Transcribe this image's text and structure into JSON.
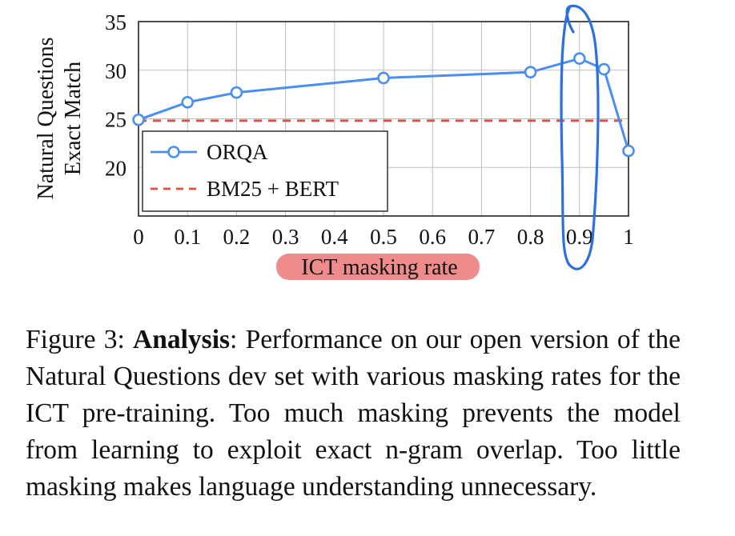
{
  "chart_data": {
    "type": "line",
    "xlabel": "ICT masking rate",
    "ylabel_lines": [
      "Natural Questions",
      "Exact Match"
    ],
    "xlim": [
      0,
      1
    ],
    "ylim": [
      15,
      35
    ],
    "x_ticks": [
      0,
      0.1,
      0.2,
      0.3,
      0.4,
      0.5,
      0.6,
      0.7,
      0.8,
      0.9,
      1
    ],
    "x_tick_labels": [
      "0",
      "0.1",
      "0.2",
      "0.3",
      "0.4",
      "0.5",
      "0.6",
      "0.7",
      "0.8",
      "0.9",
      "1"
    ],
    "y_ticks": [
      20,
      25,
      30,
      35
    ],
    "y_tick_labels": [
      "20",
      "25",
      "30",
      "35"
    ],
    "grid": true,
    "legend_position": "lower-left",
    "series": [
      {
        "name": "ORQA",
        "style": "solid line with hollow circle markers",
        "color": "#4a8ff0",
        "x": [
          0,
          0.1,
          0.2,
          0.5,
          0.8,
          0.9,
          0.95,
          1
        ],
        "y": [
          24.9,
          26.7,
          27.7,
          29.2,
          29.8,
          31.2,
          30.1,
          21.7
        ]
      },
      {
        "name": "BM25 + BERT",
        "style": "dashed horizontal line",
        "color": "#e0503c",
        "x": [
          0,
          1
        ],
        "y": [
          24.8,
          24.8
        ]
      }
    ],
    "annotations": {
      "xlabel_highlight_color": "#ee8c8c",
      "ink_color": "#2d6fe0"
    }
  },
  "caption": {
    "figure_label": "Figure 3: ",
    "bold_title": "Analysis",
    "body": ": Performance on our open version of the Natural Questions dev set with various masking rates for the ICT pre-training. Too much masking prevents the model from learning to exploit exact n-gram overlap. Too little masking makes language understanding unnecessary."
  }
}
